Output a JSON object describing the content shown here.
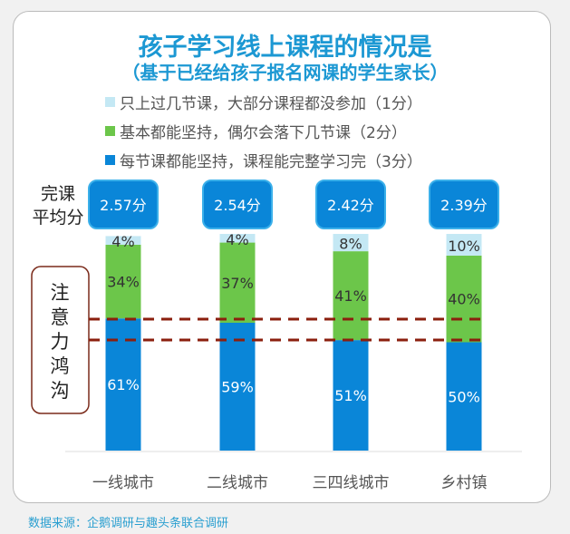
{
  "chart_data": {
    "type": "bar",
    "stacked": true,
    "title": "孩子学习线上课程的情况是",
    "subtitle": "（基于已经给孩子报名网课的学生家长）",
    "categories": [
      "一线城市",
      "二线城市",
      "三四线城市",
      "乡村镇"
    ],
    "series": [
      {
        "name": "每节课都能坚持，课程能完整学习完（3分）",
        "color": "#0a86d8",
        "values": [
          61,
          59,
          51,
          50
        ],
        "labels": [
          "61%",
          "59%",
          "51%",
          "50%"
        ]
      },
      {
        "name": "基本都能坚持，偶尔会落下几节课（2分）",
        "color": "#6cc64a",
        "values": [
          34,
          37,
          41,
          40
        ],
        "labels": [
          "34%",
          "37%",
          "41%",
          "40%"
        ]
      },
      {
        "name": "只上过几节课，大部分课程都没参加（1分）",
        "color": "#c4e8f4",
        "values": [
          4,
          4,
          8,
          10
        ],
        "labels": [
          "4%",
          "4%",
          "8%",
          "10%"
        ]
      }
    ],
    "legend_order": [
      2,
      1,
      0
    ],
    "avg_label": [
      "完课",
      "平均分"
    ],
    "avg_scores": [
      "2.57分",
      "2.54分",
      "2.42分",
      "2.39分"
    ],
    "annotation": "注意力鸿沟",
    "ylim": [
      0,
      100
    ]
  },
  "source": "数据来源：企鹅调研与趣头条联合调研"
}
